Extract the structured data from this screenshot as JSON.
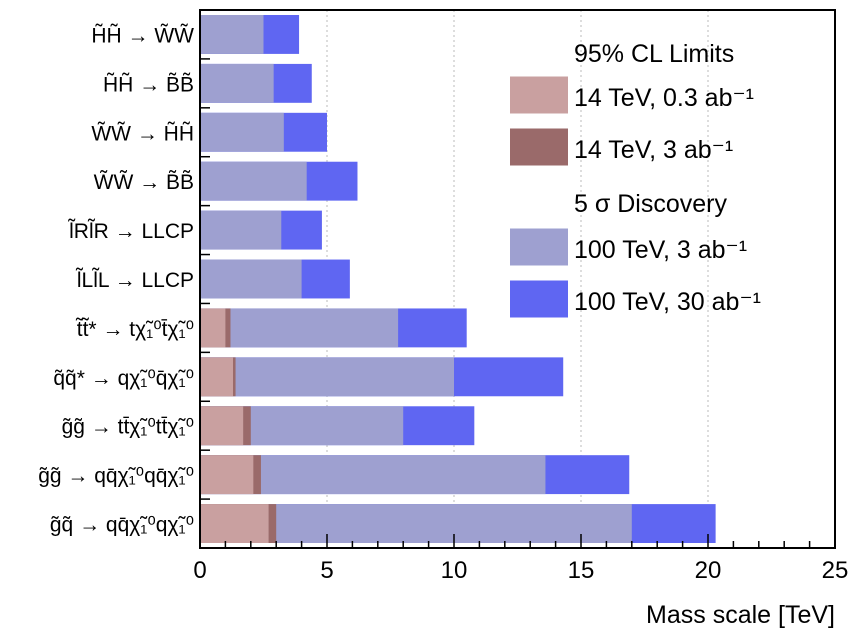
{
  "chart_data": {
    "type": "bar",
    "orientation": "horizontal",
    "xlabel": "Mass scale [TeV]",
    "ylabel": "",
    "xlim": [
      0,
      25
    ],
    "xticks": [
      0,
      5,
      10,
      15,
      20,
      25
    ],
    "grid": "vertical dotted",
    "legend_position": "top-right",
    "categories": [
      "H̃H̃ → W̃W̃",
      "H̃H̃ → B̃B̃",
      "W̃W̃ → H̃H̃",
      "W̃W̃ → B̃B̃",
      "l̃Rl̃R → LLCP",
      "l̃Ll̃L → LLCP",
      "t̃t̃* → tχ̃₁⁰t̄χ̃₁⁰",
      "q̃q̃* → qχ̃₁⁰q̄χ̃₁⁰",
      "g̃g̃ → tt̄χ̃₁⁰tt̄χ̃₁⁰",
      "g̃g̃ → qq̄χ̃₁⁰qq̄χ̃₁⁰",
      "g̃q̃ → qq̄χ̃₁⁰qχ̃₁⁰"
    ],
    "legend": {
      "header_limits": "95% CL Limits",
      "header_discovery": "5 σ Discovery",
      "entries": [
        {
          "label": "14 TeV, 0.3 ab⁻¹",
          "color": "#c9a0a0"
        },
        {
          "label": "14 TeV, 3 ab⁻¹",
          "color": "#9a6a6a"
        },
        {
          "label": "100 TeV, 3 ab⁻¹",
          "color": "#9ea0d0"
        },
        {
          "label": "100 TeV, 30 ab⁻¹",
          "color": "#5f66f2"
        }
      ]
    },
    "series": [
      {
        "name": "100 TeV, 30 ab⁻¹",
        "color": "#5f66f2",
        "values": [
          3.9,
          4.4,
          5.0,
          6.2,
          4.8,
          5.9,
          10.5,
          14.3,
          10.8,
          16.9,
          20.3
        ]
      },
      {
        "name": "100 TeV, 3 ab⁻¹",
        "color": "#9ea0d0",
        "values": [
          2.5,
          2.9,
          3.3,
          4.2,
          3.2,
          4.0,
          7.8,
          10.0,
          8.0,
          13.6,
          17.0
        ]
      },
      {
        "name": "14 TeV, 3 ab⁻¹",
        "color": "#9a6a6a",
        "values": [
          null,
          null,
          null,
          null,
          null,
          null,
          1.2,
          1.4,
          2.0,
          2.4,
          3.0
        ]
      },
      {
        "name": "14 TeV, 0.3 ab⁻¹",
        "color": "#c9a0a0",
        "values": [
          null,
          null,
          null,
          null,
          null,
          null,
          1.0,
          1.3,
          1.7,
          2.1,
          2.7
        ]
      }
    ]
  }
}
